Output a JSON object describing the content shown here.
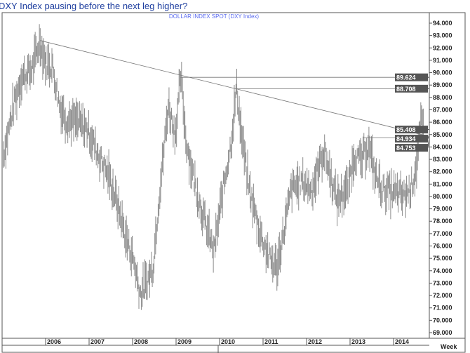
{
  "title": "DXY Index pausing before the next leg higher?",
  "chart_data": {
    "type": "bar",
    "subtitle": "DOLLAR INDEX SPOT (DXY Index)",
    "xlabel": "Week",
    "x_ticks": [
      "2006",
      "2007",
      "2008",
      "2009",
      "2010",
      "2011",
      "2012",
      "2013",
      "2014"
    ],
    "xlim": [
      2005.0,
      2014.85
    ],
    "ylim": [
      68.7,
      94.8
    ],
    "y_ticks": [
      69,
      70,
      71,
      72,
      73,
      74,
      75,
      76,
      77,
      78,
      79,
      80,
      81,
      82,
      83,
      84,
      85,
      86,
      87,
      88,
      89,
      90,
      91,
      92,
      93,
      94
    ],
    "y_tick_labels": [
      "69.000",
      "70.000",
      "71.000",
      "72.000",
      "73.000",
      "74.000",
      "75.000",
      "76.000",
      "77.000",
      "78.000",
      "79.000",
      "80.000",
      "81.000",
      "82.000",
      "83.000",
      "84.000",
      "85.000",
      "86.000",
      "87.000",
      "88.000",
      "89.000",
      "90.000",
      "91.000",
      "92.000",
      "93.000",
      "94.000"
    ],
    "price_path": [
      [
        2005.03,
        83.4
      ],
      [
        2005.27,
        87.4
      ],
      [
        2005.44,
        89.6
      ],
      [
        2005.68,
        90.2
      ],
      [
        2005.87,
        92.5
      ],
      [
        2006.0,
        90.8
      ],
      [
        2006.16,
        90.5
      ],
      [
        2006.32,
        87.4
      ],
      [
        2006.48,
        86.2
      ],
      [
        2006.73,
        86
      ],
      [
        2006.97,
        85.4
      ],
      [
        2007.21,
        83.4
      ],
      [
        2007.45,
        81.7
      ],
      [
        2007.69,
        78.9
      ],
      [
        2007.85,
        76.6
      ],
      [
        2008.02,
        74.9
      ],
      [
        2008.18,
        72.1
      ],
      [
        2008.34,
        73.2
      ],
      [
        2008.47,
        74.3
      ],
      [
        2008.58,
        78.9
      ],
      [
        2008.74,
        84.5
      ],
      [
        2008.82,
        87.4
      ],
      [
        2008.98,
        85
      ],
      [
        2009.11,
        89.7
      ],
      [
        2009.23,
        84.5
      ],
      [
        2009.39,
        81.7
      ],
      [
        2009.63,
        78.3
      ],
      [
        2009.87,
        75.5
      ],
      [
        2010.08,
        80.6
      ],
      [
        2010.27,
        84.5
      ],
      [
        2010.39,
        88.8
      ],
      [
        2010.52,
        84.5
      ],
      [
        2010.68,
        80.6
      ],
      [
        2010.92,
        77.2
      ],
      [
        2011.16,
        74.9
      ],
      [
        2011.32,
        74.3
      ],
      [
        2011.48,
        77.2
      ],
      [
        2011.65,
        80.6
      ],
      [
        2011.89,
        81.2
      ],
      [
        2012.13,
        80.6
      ],
      [
        2012.4,
        83.7
      ],
      [
        2012.53,
        82
      ],
      [
        2012.69,
        79.7
      ],
      [
        2012.94,
        80.6
      ],
      [
        2013.1,
        83.4
      ],
      [
        2013.26,
        82.8
      ],
      [
        2013.42,
        84.2
      ],
      [
        2013.58,
        81.7
      ],
      [
        2013.74,
        80.6
      ],
      [
        2013.98,
        80.3
      ],
      [
        2014.23,
        80
      ],
      [
        2014.39,
        80.6
      ],
      [
        2014.52,
        82.3
      ],
      [
        2014.63,
        86
      ],
      [
        2014.69,
        85.4
      ]
    ],
    "trendline": [
      [
        2005.87,
        92.6
      ],
      [
        2014.69,
        84.9
      ]
    ],
    "levels": [
      {
        "from": 2009.1,
        "value": 89.624,
        "label": "89.624"
      },
      {
        "from": 2010.4,
        "value": 88.708,
        "label": "88.708"
      },
      {
        "from": 2013.3,
        "value": 84.753,
        "label": "84.753"
      }
    ],
    "last_labels": [
      {
        "value": 85.408,
        "label": "85.408"
      },
      {
        "value": 84.934,
        "label": "84.934"
      }
    ],
    "colors": {
      "bars": "#8a8a8a",
      "lines": "#777777",
      "label_box": "#555555",
      "title": "#1f3f9f",
      "subtitle": "#5b6cf0"
    }
  }
}
